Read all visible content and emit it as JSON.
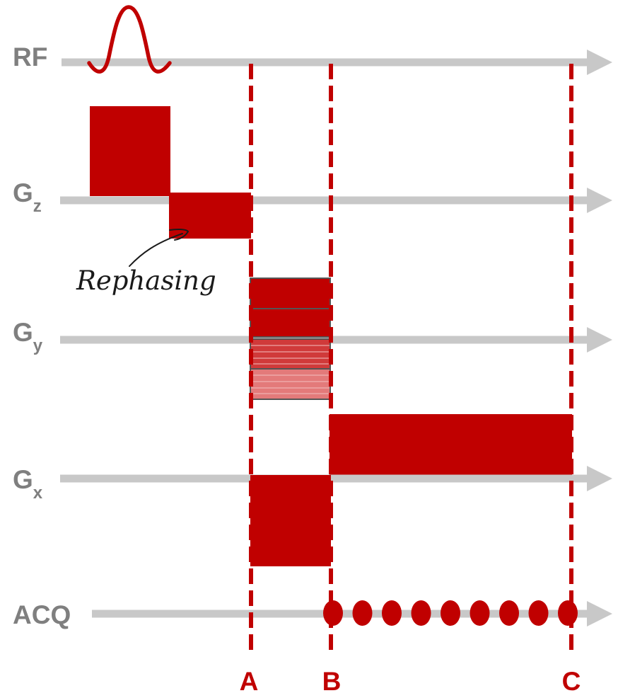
{
  "rows": {
    "rf": {
      "label": "RF"
    },
    "gz": {
      "label": "G",
      "sub": "z"
    },
    "gy": {
      "label": "G",
      "sub": "y"
    },
    "gx": {
      "label": "G",
      "sub": "x"
    },
    "acq": {
      "label": "ACQ"
    }
  },
  "markers": [
    {
      "label": "A"
    },
    {
      "label": "B"
    },
    {
      "label": "C"
    }
  ],
  "annotation": {
    "text": "Rephasing"
  },
  "acq_samples": 9,
  "colors": {
    "axis": "#c8c8c8",
    "label": "#7f7f7f",
    "accent": "#c00000",
    "shade_dark": "#c00000",
    "shade_mid": "#d03a3a",
    "shade_light": "#e37a7a"
  }
}
